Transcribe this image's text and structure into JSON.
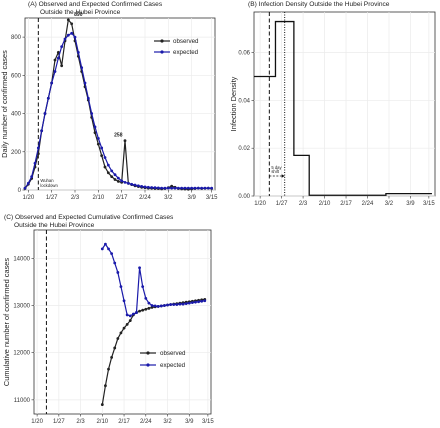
{
  "colors": {
    "observed": "#222222",
    "expected": "#1a1aaa",
    "grid": "#ebebeb"
  },
  "chart_data": [
    {
      "id": "A",
      "type": "line",
      "title": "(A) Observed and Expected Confirmed Cases",
      "title_line2": "Outside the Hubei Province",
      "xlabel": "",
      "ylabel": "Daily number of confirmed cases",
      "x_tick_labels": [
        "1/20",
        "1/27",
        "2/3",
        "2/10",
        "2/17",
        "2/24",
        "3/2",
        "3/9",
        "3/15"
      ],
      "y_ticks": [
        0,
        200,
        400,
        600,
        800
      ],
      "ylim": [
        0,
        900
      ],
      "xlim_days": [
        -1,
        56
      ],
      "legend_position": "top-right",
      "vline_label": [
        "Wuhan",
        "lockdown"
      ],
      "data_labels": [
        {
          "day": 15,
          "value": 890,
          "text": "890"
        },
        {
          "day": 27,
          "value": 258,
          "text": "258"
        }
      ],
      "series": [
        {
          "name": "observed",
          "x_start": "1/19",
          "values": [
            8,
            30,
            60,
            120,
            190,
            310,
            400,
            480,
            560,
            680,
            720,
            650,
            780,
            890,
            870,
            780,
            700,
            620,
            540,
            470,
            380,
            300,
            240,
            180,
            120,
            90,
            70,
            55,
            45,
            40,
            258,
            35,
            28,
            22,
            18,
            14,
            12,
            10,
            9,
            8,
            7,
            6,
            8,
            12,
            20,
            14,
            8,
            6,
            5,
            4,
            6,
            8,
            10,
            8,
            9,
            10,
            8
          ]
        },
        {
          "name": "expected",
          "x_start": "1/19",
          "values": [
            10,
            35,
            70,
            140,
            220,
            310,
            400,
            480,
            560,
            620,
            690,
            750,
            790,
            810,
            820,
            800,
            720,
            640,
            560,
            480,
            400,
            330,
            270,
            220,
            170,
            130,
            100,
            80,
            62,
            48,
            40,
            35,
            30,
            26,
            22,
            19,
            16,
            14,
            13,
            12,
            11,
            10,
            10,
            10,
            10,
            10,
            10,
            10,
            10,
            10,
            10,
            10,
            10,
            10,
            10,
            10,
            10
          ]
        }
      ]
    },
    {
      "id": "B",
      "type": "step",
      "title": "(B) Infection Density Outside the Hubei Province",
      "xlabel": "",
      "ylabel": "Infection Density",
      "x_tick_labels": [
        "1/20",
        "1/27",
        "2/3",
        "2/10",
        "2/17",
        "2/24",
        "3/2",
        "3/9",
        "3/15"
      ],
      "y_ticks": [
        "0.00",
        "0.02",
        "0.04",
        "0.06"
      ],
      "ylim": [
        0,
        0.077
      ],
      "annotation": [
        "5 day",
        "shift"
      ],
      "steps": [
        {
          "from_day": -2,
          "to_day": 5,
          "value": 0.05
        },
        {
          "from_day": 5,
          "to_day": 11,
          "value": 0.073
        },
        {
          "from_day": 11,
          "to_day": 16,
          "value": 0.017
        },
        {
          "from_day": 16,
          "to_day": 41,
          "value": 0.0003
        },
        {
          "from_day": 41,
          "to_day": 56,
          "value": 0.001
        }
      ]
    },
    {
      "id": "C",
      "type": "line",
      "title": "(C) Observed and Expected Cumulative Confirmed Cases",
      "title_line2": "Outside the Hubei Province",
      "xlabel": "",
      "ylabel": "Cumulative number of confirmed cases",
      "x_tick_labels": [
        "1/20",
        "1/27",
        "2/3",
        "2/10",
        "2/17",
        "2/24",
        "3/2",
        "3/9",
        "3/15"
      ],
      "y_ticks": [
        11000,
        12000,
        13000,
        14000
      ],
      "ylim": [
        10700,
        14600
      ],
      "legend_position": "bottom-right",
      "series": [
        {
          "name": "observed",
          "x_start": "2/10",
          "values": [
            10900,
            11300,
            11650,
            11900,
            12100,
            12300,
            12420,
            12520,
            12600,
            12680,
            12800,
            12850,
            12880,
            12900,
            12920,
            12940,
            12960,
            12970,
            12980,
            12990,
            13000,
            13010,
            13020,
            13030,
            13040,
            13050,
            13060,
            13070,
            13080,
            13090,
            13100,
            13110,
            13120,
            13130
          ]
        },
        {
          "name": "expected",
          "x_start": "2/10",
          "values": [
            14200,
            14300,
            14200,
            14100,
            13900,
            13700,
            13400,
            13100,
            12800,
            12780,
            12820,
            12850,
            13800,
            13400,
            13150,
            13050,
            13000,
            12990,
            12980,
            12990,
            13000,
            13010,
            13020,
            13020,
            13020,
            13030,
            13030,
            13040,
            13050,
            13060,
            13070,
            13080,
            13090,
            13100
          ]
        }
      ]
    }
  ]
}
